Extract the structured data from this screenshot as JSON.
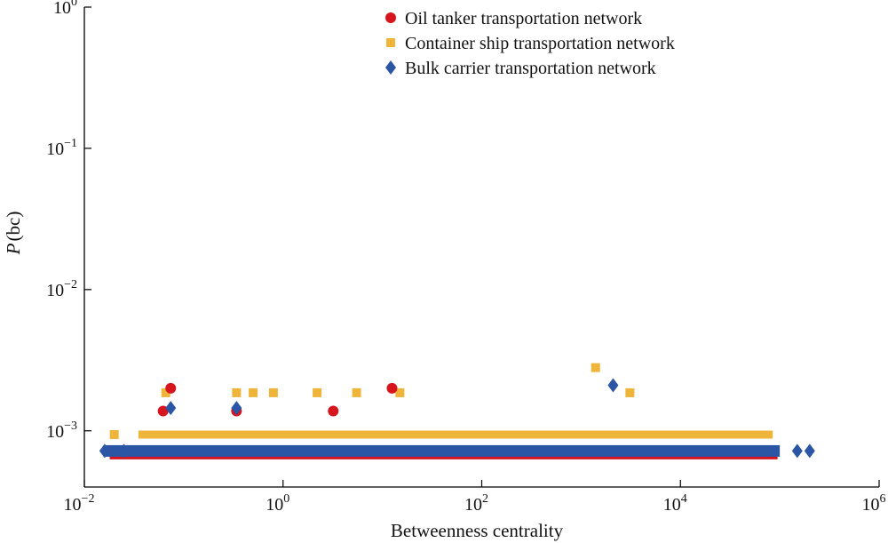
{
  "chart_data": {
    "type": "scatter",
    "title": "",
    "xlabel": "Betweenness centrality",
    "ylabel_italic": "P",
    "ylabel_rest": "(bc)",
    "xscale": "log",
    "yscale": "log",
    "xlim": [
      0.01,
      1000000
    ],
    "ylim": [
      0.0004,
      1
    ],
    "x_ticks": [
      {
        "value": 0.01,
        "base": "10",
        "exp": "−2"
      },
      {
        "value": 1,
        "base": "10",
        "exp": "0"
      },
      {
        "value": 100,
        "base": "10",
        "exp": "2"
      },
      {
        "value": 10000,
        "base": "10",
        "exp": "4"
      },
      {
        "value": 1000000,
        "base": "10",
        "exp": "6"
      }
    ],
    "y_ticks": [
      {
        "value": 0.001,
        "base": "10",
        "exp": "−3"
      },
      {
        "value": 0.01,
        "base": "10",
        "exp": "−2"
      },
      {
        "value": 0.1,
        "base": "10",
        "exp": "−1"
      },
      {
        "value": 1,
        "base": "10",
        "exp": "0"
      }
    ],
    "grid": false,
    "legend_position": "top-right",
    "series": [
      {
        "name": "Oil tanker transportation network",
        "marker": "circle",
        "color": "#d7151d",
        "band": {
          "x_from": 0.018,
          "x_to": 95000,
          "y": 0.00068
        },
        "points": [
          {
            "x": 0.062,
            "y": 0.00138
          },
          {
            "x": 0.074,
            "y": 0.002
          },
          {
            "x": 0.34,
            "y": 0.00138
          },
          {
            "x": 3.2,
            "y": 0.00138
          },
          {
            "x": 12.5,
            "y": 0.002
          }
        ]
      },
      {
        "name": "Container ship transportation network",
        "marker": "square",
        "color": "#efb53b",
        "band": {
          "x_from": 0.035,
          "x_to": 85000,
          "y": 0.00094
        },
        "points": [
          {
            "x": 0.02,
            "y": 0.00094
          },
          {
            "x": 0.066,
            "y": 0.00186
          },
          {
            "x": 0.34,
            "y": 0.00186
          },
          {
            "x": 0.5,
            "y": 0.00186
          },
          {
            "x": 0.8,
            "y": 0.00186
          },
          {
            "x": 2.2,
            "y": 0.00186
          },
          {
            "x": 5.5,
            "y": 0.00186
          },
          {
            "x": 15,
            "y": 0.00186
          },
          {
            "x": 1400,
            "y": 0.0028
          },
          {
            "x": 3100,
            "y": 0.00186
          }
        ]
      },
      {
        "name": "Bulk carrier transportation network",
        "marker": "diamond",
        "color": "#2b55a5",
        "band": {
          "x_from": 0.016,
          "x_to": 100000,
          "y": 0.00072
        },
        "points": [
          {
            "x": 0.016,
            "y": 0.00072
          },
          {
            "x": 0.025,
            "y": 0.00072
          },
          {
            "x": 0.074,
            "y": 0.00145
          },
          {
            "x": 0.34,
            "y": 0.00145
          },
          {
            "x": 2100,
            "y": 0.0021
          },
          {
            "x": 150000,
            "y": 0.00072
          },
          {
            "x": 200000,
            "y": 0.00072
          }
        ]
      }
    ]
  }
}
